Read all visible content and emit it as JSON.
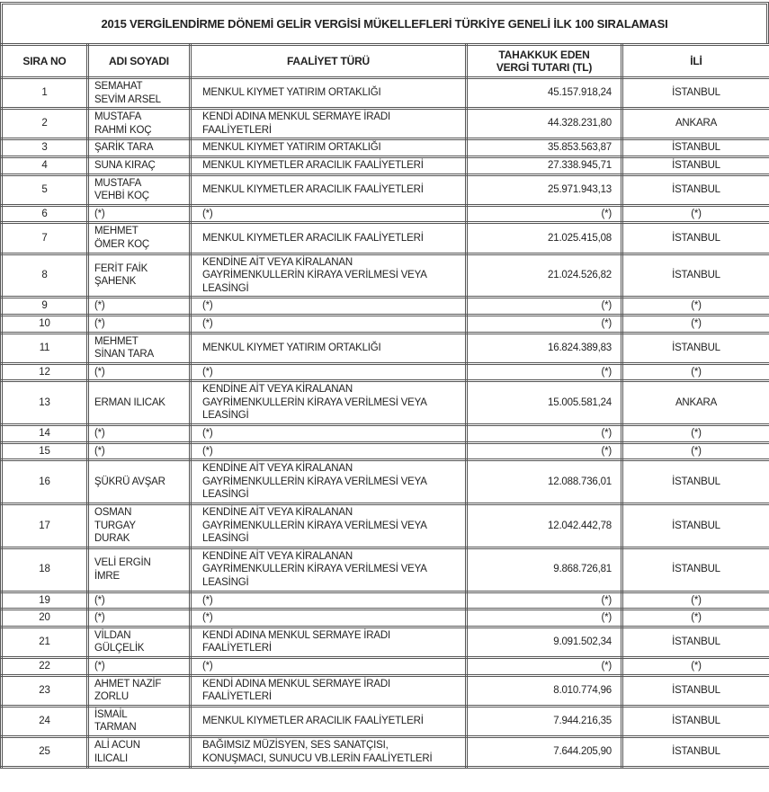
{
  "title": "2015 VERGİLENDİRME DÖNEMİ GELİR VERGİSİ MÜKELLEFLERİ TÜRKİYE GENELİ İLK 100 SIRALAMASI",
  "columns": [
    "SIRA NO",
    "ADI SOYADI",
    "FAALİYET TÜRÜ",
    "TAHAKKUK EDEN\nVERGİ TUTARI (TL)",
    "İLİ"
  ],
  "rows": [
    {
      "no": "1",
      "name": "SEMAHAT\nSEVİM ARSEL",
      "activity": "MENKUL KIYMET YATIRIM ORTAKLIĞI",
      "tax": "45.157.918,24",
      "city": "İSTANBUL"
    },
    {
      "no": "2",
      "name": "MUSTAFA\nRAHMİ KOÇ",
      "activity": "KENDİ ADINA MENKUL SERMAYE İRADI\nFAALİYETLERİ",
      "tax": "44.328.231,80",
      "city": "ANKARA"
    },
    {
      "no": "3",
      "name": "ŞARİK TARA",
      "activity": "MENKUL KIYMET YATIRIM ORTAKLIĞI",
      "tax": "35.853.563,87",
      "city": "İSTANBUL"
    },
    {
      "no": "4",
      "name": "SUNA KIRAÇ",
      "activity": "MENKUL KIYMETLER ARACILIK FAALİYETLERİ",
      "tax": "27.338.945,71",
      "city": "İSTANBUL"
    },
    {
      "no": "5",
      "name": "MUSTAFA\nVEHBİ KOÇ",
      "activity": "MENKUL KIYMETLER ARACILIK FAALİYETLERİ",
      "tax": "25.971.943,13",
      "city": "İSTANBUL"
    },
    {
      "no": "6",
      "name": "(*)",
      "activity": "(*)",
      "tax": "(*)",
      "city": "(*)"
    },
    {
      "no": "7",
      "name": "MEHMET\nÖMER KOÇ",
      "activity": "MENKUL KIYMETLER ARACILIK FAALİYETLERİ",
      "tax": "21.025.415,08",
      "city": "İSTANBUL"
    },
    {
      "no": "8",
      "name": "FERİT FAİK\nŞAHENK",
      "activity": "KENDİNE AİT VEYA KİRALANAN\nGAYRİMENKULLERİN KİRAYA VERİLMESİ VEYA\nLEASİNGİ",
      "tax": "21.024.526,82",
      "city": "İSTANBUL"
    },
    {
      "no": "9",
      "name": "(*)",
      "activity": "(*)",
      "tax": "(*)",
      "city": "(*)"
    },
    {
      "no": "10",
      "name": "(*)",
      "activity": "(*)",
      "tax": "(*)",
      "city": "(*)"
    },
    {
      "no": "11",
      "name": "MEHMET\nSİNAN TARA",
      "activity": "MENKUL KIYMET YATIRIM ORTAKLIĞI",
      "tax": "16.824.389,83",
      "city": "İSTANBUL"
    },
    {
      "no": "12",
      "name": "(*)",
      "activity": "(*)",
      "tax": "(*)",
      "city": "(*)"
    },
    {
      "no": "13",
      "name": "ERMAN ILICAK",
      "activity": "KENDİNE AİT VEYA KİRALANAN\nGAYRİMENKULLERİN KİRAYA VERİLMESİ VEYA\nLEASİNGİ",
      "tax": "15.005.581,24",
      "city": "ANKARA"
    },
    {
      "no": "14",
      "name": "(*)",
      "activity": "(*)",
      "tax": "(*)",
      "city": "(*)"
    },
    {
      "no": "15",
      "name": "(*)",
      "activity": "(*)",
      "tax": "(*)",
      "city": "(*)"
    },
    {
      "no": "16",
      "name": "ŞÜKRÜ AVŞAR",
      "activity": "KENDİNE AİT VEYA KİRALANAN\nGAYRİMENKULLERİN KİRAYA VERİLMESİ VEYA\nLEASİNGİ",
      "tax": "12.088.736,01",
      "city": "İSTANBUL"
    },
    {
      "no": "17",
      "name": "OSMAN\nTURGAY\nDURAK",
      "activity": "KENDİNE AİT VEYA KİRALANAN\nGAYRİMENKULLERİN KİRAYA VERİLMESİ VEYA\nLEASİNGİ",
      "tax": "12.042.442,78",
      "city": "İSTANBUL"
    },
    {
      "no": "18",
      "name": "VELİ ERGİN\nİMRE",
      "activity": "KENDİNE AİT VEYA KİRALANAN\nGAYRİMENKULLERİN KİRAYA VERİLMESİ VEYA\nLEASİNGİ",
      "tax": "9.868.726,81",
      "city": "İSTANBUL"
    },
    {
      "no": "19",
      "name": "(*)",
      "activity": "(*)",
      "tax": "(*)",
      "city": "(*)"
    },
    {
      "no": "20",
      "name": "(*)",
      "activity": "(*)",
      "tax": "(*)",
      "city": "(*)"
    },
    {
      "no": "21",
      "name": "VİLDAN\nGÜLÇELİK",
      "activity": "KENDİ ADINA MENKUL SERMAYE İRADI\nFAALİYETLERİ",
      "tax": "9.091.502,34",
      "city": "İSTANBUL"
    },
    {
      "no": "22",
      "name": "(*)",
      "activity": "(*)",
      "tax": "(*)",
      "city": "(*)"
    },
    {
      "no": "23",
      "name": "AHMET NAZİF\nZORLU",
      "activity": "KENDİ ADINA MENKUL SERMAYE İRADI\nFAALİYETLERİ",
      "tax": "8.010.774,96",
      "city": "İSTANBUL"
    },
    {
      "no": "24",
      "name": "İSMAİL\nTARMAN",
      "activity": "MENKUL KIYMETLER ARACILIK FAALİYETLERİ",
      "tax": "7.944.216,35",
      "city": "İSTANBUL"
    },
    {
      "no": "25",
      "name": "ALİ ACUN\nILICALI",
      "activity": "BAĞIMSIZ MÜZİSYEN, SES SANATÇISI,\nKONUŞMACI, SUNUCU VB.LERİN FAALİYETLERİ",
      "tax": "7.644.205,90",
      "city": "İSTANBUL"
    }
  ]
}
